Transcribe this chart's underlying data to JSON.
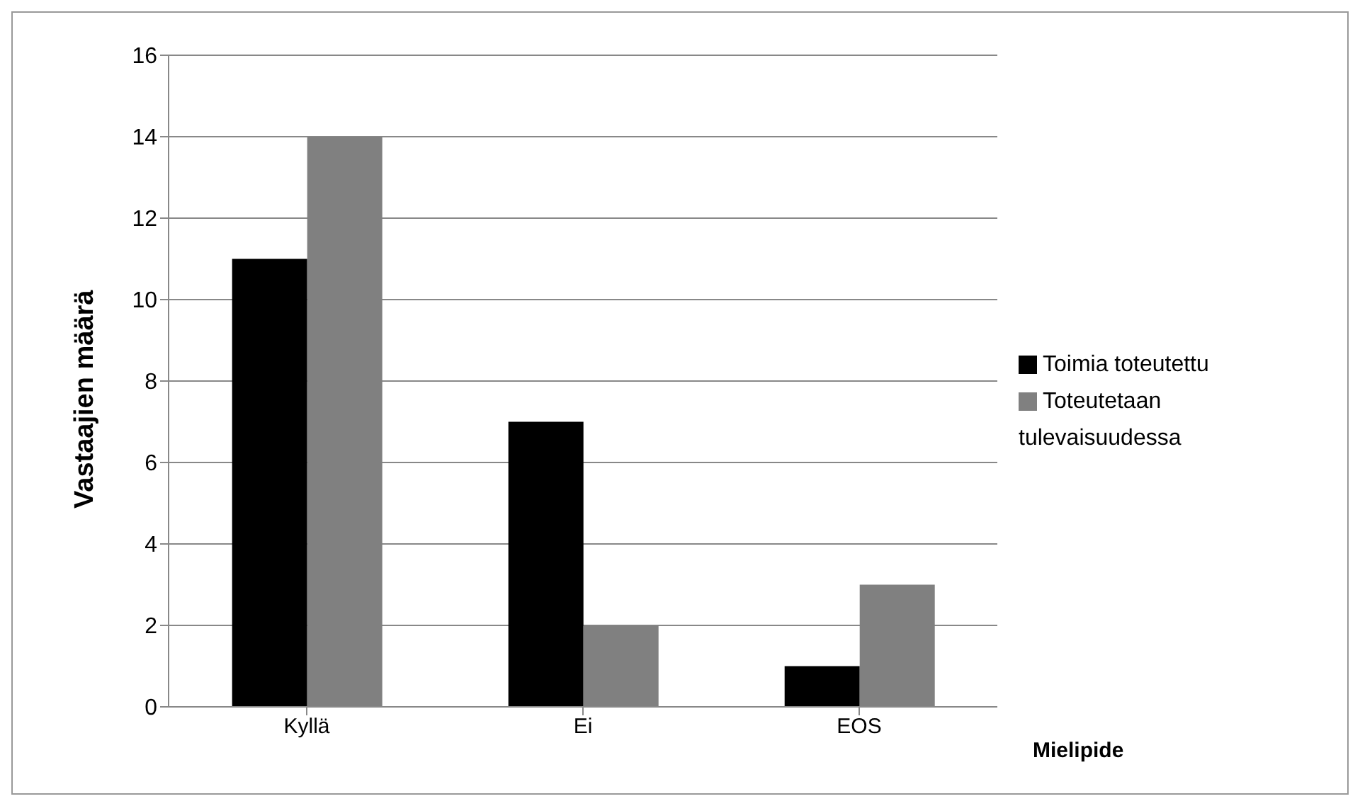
{
  "chart_data": {
    "type": "bar",
    "xlabel": "Mielipide",
    "ylabel": "Vastaajien määrä",
    "categories": [
      "Kyllä",
      "Ei",
      "EOS"
    ],
    "series": [
      {
        "name": "Toimia toteutettu",
        "color": "#000000",
        "values": [
          11,
          7,
          1
        ]
      },
      {
        "name": "Toteutetaan tulevaisuudessa",
        "color": "#808080",
        "values": [
          14,
          2,
          3
        ]
      }
    ],
    "ylim": [
      0,
      16
    ],
    "yticks": [
      0,
      2,
      4,
      6,
      8,
      10,
      12,
      14,
      16
    ],
    "grid": "y",
    "legend": "right"
  }
}
